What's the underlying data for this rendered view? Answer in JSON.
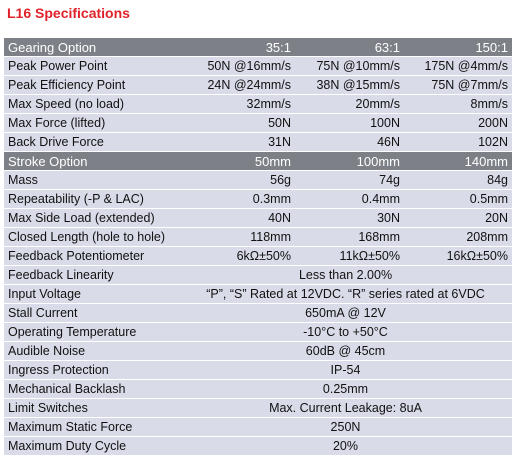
{
  "title": "L16 Specifications",
  "gearing_header": {
    "label": "Gearing Option",
    "values": [
      "35:1",
      "63:1",
      "150:1"
    ]
  },
  "gearing_rows": [
    {
      "label": "Peak Power Point",
      "values": [
        "50N @16mm/s",
        "75N @10mm/s",
        "175N @4mm/s"
      ]
    },
    {
      "label": "Peak Efficiency Point",
      "values": [
        "24N @24mm/s",
        "38N @15mm/s",
        "75N @7mm/s"
      ]
    },
    {
      "label": "Max Speed (no load)",
      "values": [
        "32mm/s",
        "20mm/s",
        "8mm/s"
      ]
    },
    {
      "label": "Max Force (lifted)",
      "values": [
        "50N",
        "100N",
        "200N"
      ]
    },
    {
      "label": "Back Drive Force",
      "values": [
        "31N",
        "46N",
        "102N"
      ]
    }
  ],
  "stroke_header": {
    "label": "Stroke Option",
    "values": [
      "50mm",
      "100mm",
      "140mm"
    ]
  },
  "stroke_rows": [
    {
      "label": "Mass",
      "values": [
        "56g",
        "74g",
        "84g"
      ]
    },
    {
      "label": "Repeatability (-P & LAC)",
      "values": [
        "0.3mm",
        "0.4mm",
        "0.5mm"
      ]
    },
    {
      "label": "Max Side Load (extended)",
      "values": [
        "40N",
        "30N",
        "20N"
      ]
    },
    {
      "label": "Closed Length (hole to hole)",
      "values": [
        "118mm",
        "168mm",
        "208mm"
      ]
    },
    {
      "label": "Feedback Potentiometer",
      "values": [
        "6kΩ±50%",
        "11kΩ±50%",
        "16kΩ±50%"
      ]
    }
  ],
  "general_rows": [
    {
      "label": "Feedback Linearity",
      "value": "Less than 2.00%"
    },
    {
      "label": "Input Voltage",
      "value": "“P”, “S” Rated at 12VDC. “R” series rated at 6VDC"
    },
    {
      "label": "Stall Current",
      "value": "650mA @ 12V"
    },
    {
      "label": "Operating Temperature",
      "value": "-10°C to +50°C"
    },
    {
      "label": "Audible Noise",
      "value": "60dB @ 45cm"
    },
    {
      "label": "Ingress Protection",
      "value": "IP-54"
    },
    {
      "label": "Mechanical Backlash",
      "value": "0.25mm"
    },
    {
      "label": "Limit Switches",
      "value": "Max. Current Leakage: 8uA"
    },
    {
      "label": "Maximum Static Force",
      "value": "250N"
    },
    {
      "label": "Maximum Duty Cycle",
      "value": "20%"
    }
  ],
  "colors": {
    "title": "#e0232b",
    "header_bg": "#7d8187",
    "row_bg": "#d9dce8"
  }
}
